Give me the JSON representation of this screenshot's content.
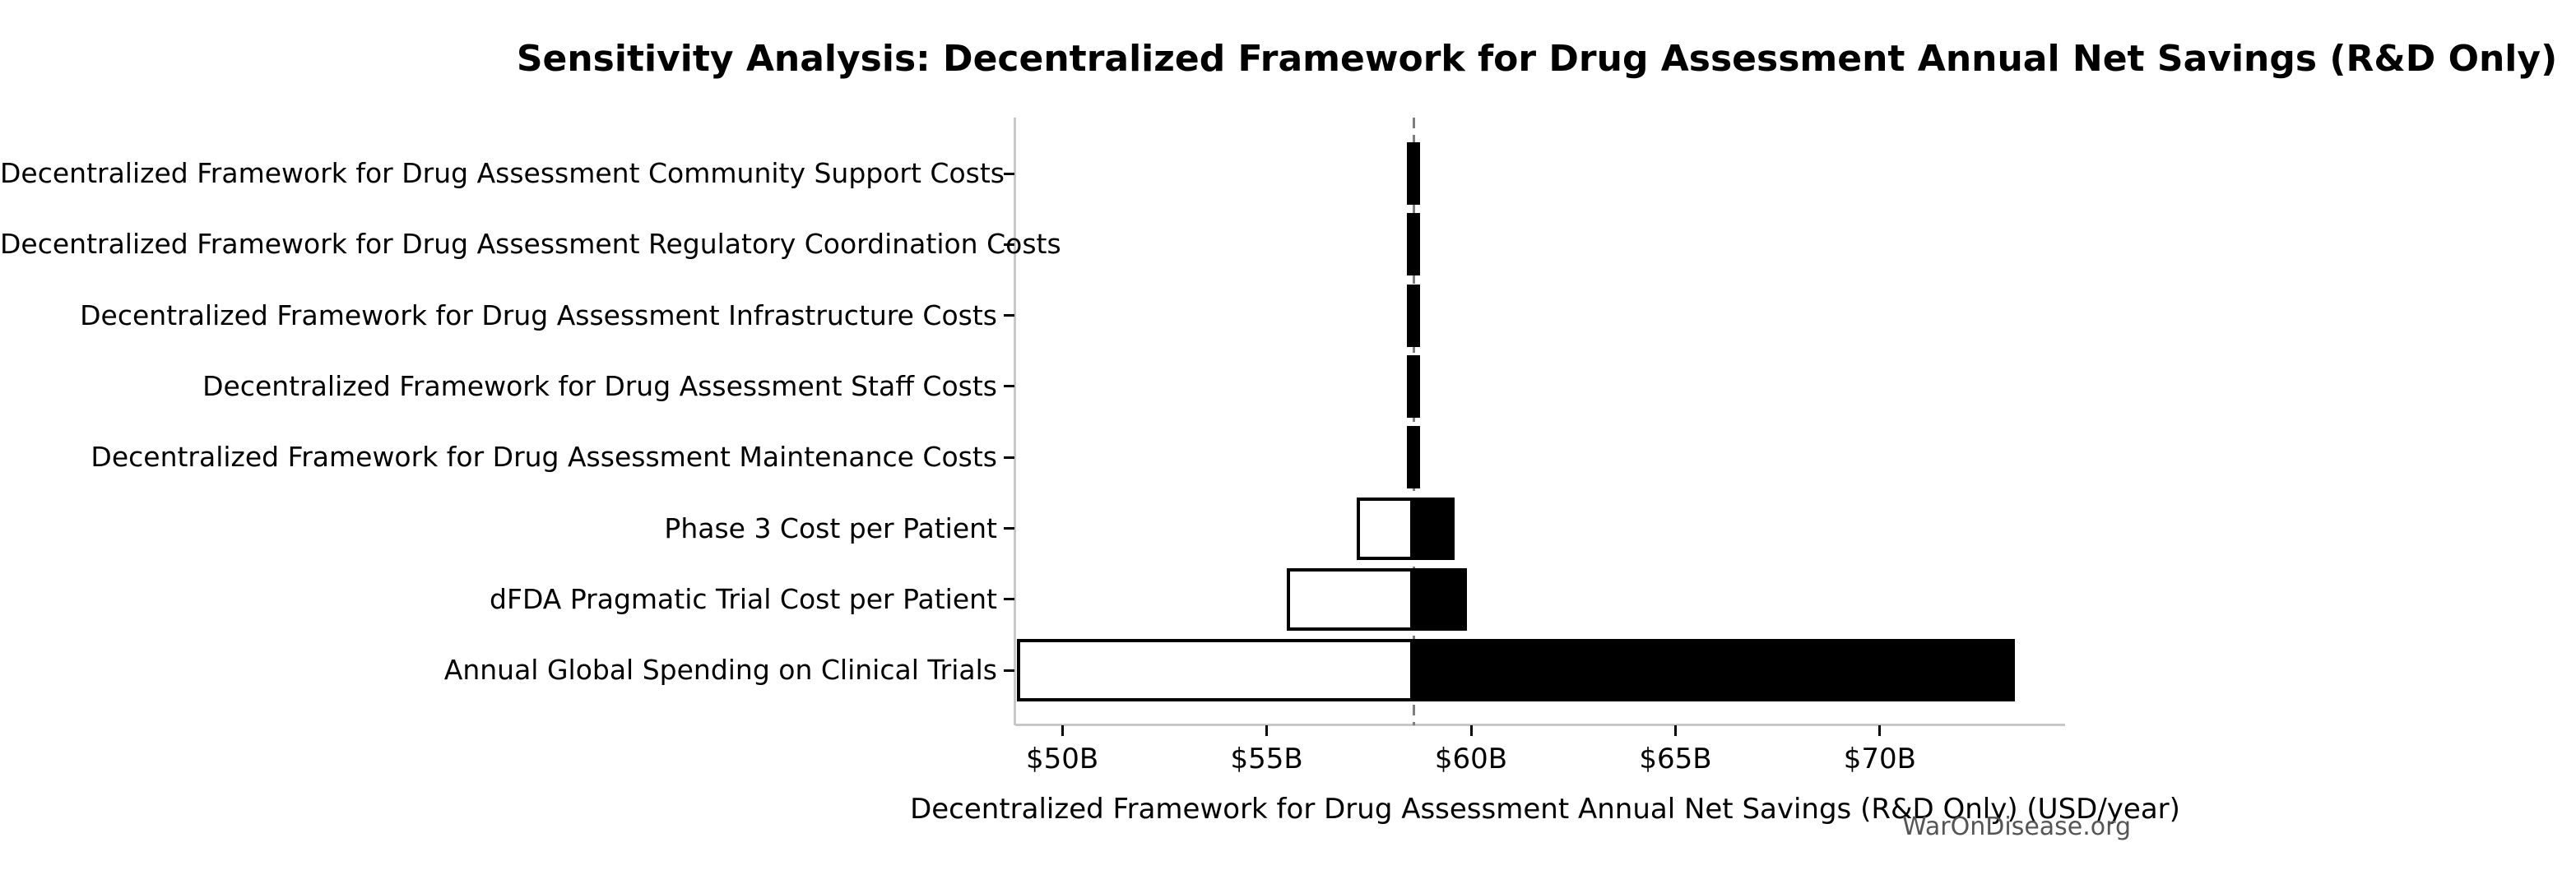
{
  "colors": {
    "low_fill": "#ffffff",
    "high_fill": "#000000",
    "bar_edge": "#000000",
    "baseline": "#7f7f7f",
    "axis_spine": "#c8c8c8",
    "tick": "#000000",
    "text": "#000000",
    "watermark": "#555555",
    "background": "#ffffff"
  },
  "watermark": "WarOnDisease.org",
  "chart_data": {
    "type": "bar",
    "subtype": "tornado-sensitivity",
    "orientation": "horizontal",
    "title": "Sensitivity Analysis: Decentralized Framework for Drug Assessment Annual Net Savings (R&D Only)",
    "xlabel": "Decentralized Framework for Drug Assessment Annual Net Savings (R&D Only) (USD/year)",
    "ylabel": "",
    "unit": "USD billions per year",
    "base_value": 58.6,
    "baseline_style": "dashed-gray-vertical",
    "xlim": [
      48.85,
      74.53
    ],
    "grid": false,
    "legend": false,
    "x_ticks": [
      {
        "value": 50,
        "label": "$50B"
      },
      {
        "value": 55,
        "label": "$55B"
      },
      {
        "value": 60,
        "label": "$60B"
      },
      {
        "value": 65,
        "label": "$65B"
      },
      {
        "value": 70,
        "label": "$70B"
      }
    ],
    "categories": [
      "Decentralized Framework for Drug Assessment Community Support Costs",
      "Decentralized Framework for Drug Assessment Regulatory Coordination Costs",
      "Decentralized Framework for Drug Assessment Infrastructure Costs",
      "Decentralized Framework for Drug Assessment Staff Costs",
      "Decentralized Framework for Drug Assessment Maintenance Costs",
      "Phase 3 Cost per Patient",
      "dFDA Pragmatic Trial Cost per Patient",
      "Annual Global Spending on Clinical Trials"
    ],
    "series": [
      {
        "name": "low",
        "fill": "white",
        "values": [
          58.57,
          58.57,
          58.57,
          58.57,
          58.57,
          57.2,
          55.5,
          48.9
        ]
      },
      {
        "name": "high",
        "fill": "black",
        "values": [
          58.63,
          58.63,
          58.63,
          58.63,
          58.63,
          59.6,
          59.9,
          73.3
        ]
      }
    ]
  }
}
